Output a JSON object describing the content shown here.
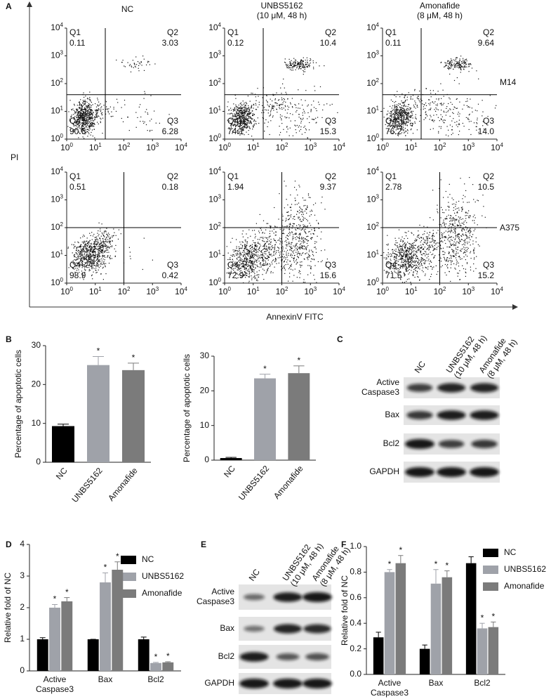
{
  "panel_labels": [
    "A",
    "B",
    "C",
    "D",
    "E",
    "F"
  ],
  "flow": {
    "column_titles": [
      "NC",
      "UNBS5162\n(10 μM, 48 h)",
      "Amonafide\n(8 μM, 48 h)"
    ],
    "row_labels": [
      "M14",
      "A375"
    ],
    "y_label": "PI",
    "x_label": "AnnexinV FITC",
    "axis_ticks": [
      {
        "base": "10",
        "exp": "0"
      },
      {
        "base": "10",
        "exp": "1"
      },
      {
        "base": "10",
        "exp": "2"
      },
      {
        "base": "10",
        "exp": "3"
      },
      {
        "base": "10",
        "exp": "4"
      }
    ],
    "quadrant_names": [
      "Q1",
      "Q2",
      "Q3",
      "Q4"
    ],
    "panels": [
      [
        {
          "Q1": "0.11",
          "Q2": "3.03",
          "Q3": "6.28",
          "Q4": "90.6"
        },
        {
          "Q1": "0.12",
          "Q2": "10.4",
          "Q3": "15.3",
          "Q4": "74.1"
        },
        {
          "Q1": "0.11",
          "Q2": "9.64",
          "Q3": "14.0",
          "Q4": "76.2"
        }
      ],
      [
        {
          "Q1": "0.51",
          "Q2": "0.18",
          "Q3": "0.42",
          "Q4": "98.9"
        },
        {
          "Q1": "1.94",
          "Q2": "9.37",
          "Q3": "15.6",
          "Q4": "72.9"
        },
        {
          "Q1": "2.78",
          "Q2": "10.5",
          "Q3": "15.2",
          "Q4": "71.5"
        }
      ]
    ]
  },
  "chart_data": [
    {
      "type": "bar",
      "y_label": "Percentage of apoptotic cells",
      "categories": [
        "NC",
        "UNBS5162",
        "Amonafide"
      ],
      "values": [
        9.3,
        25,
        23.7
      ],
      "errors": [
        0.5,
        2.2,
        1.8
      ],
      "colors": [
        "#000000",
        "#9fa2a9",
        "#7b7b7b"
      ],
      "significance": [
        null,
        "*",
        "*"
      ],
      "ylim": [
        0,
        30
      ],
      "yticks": [
        0,
        10,
        20,
        30
      ]
    },
    {
      "type": "bar",
      "y_label": "Percentage of apoptotic cells",
      "categories": [
        "NC",
        "UNBS5162",
        "Amonafide"
      ],
      "values": [
        0.6,
        23.6,
        25.1
      ],
      "errors": [
        0.2,
        1.2,
        2.1
      ],
      "colors": [
        "#000000",
        "#9fa2a9",
        "#7b7b7b"
      ],
      "significance": [
        null,
        "*",
        "*"
      ],
      "ylim": [
        0,
        30
      ],
      "yticks": [
        0,
        10,
        20,
        30
      ]
    },
    {
      "type": "bar",
      "y_label": "Relative fold of NC",
      "categories": [
        "Active\nCaspase3",
        "Bax",
        "Bcl2"
      ],
      "series": [
        {
          "name": "NC",
          "color": "#000000",
          "values": [
            1.0,
            1.0,
            1.0
          ],
          "errors": [
            0.05,
            0,
            0.07
          ],
          "significance": [
            null,
            null,
            null
          ]
        },
        {
          "name": "UNBS5162",
          "color": "#9fa2a9",
          "values": [
            2.0,
            2.8,
            0.25
          ],
          "errors": [
            0.1,
            0.3,
            0.02
          ],
          "significance": [
            "*",
            "*",
            "*"
          ]
        },
        {
          "name": "Amonafide",
          "color": "#7b7b7b",
          "values": [
            2.2,
            3.2,
            0.27
          ],
          "errors": [
            0.12,
            0.25,
            0.02
          ],
          "significance": [
            "*",
            "*",
            "*"
          ]
        }
      ],
      "ylim": [
        0,
        4
      ],
      "yticks": [
        0,
        1,
        2,
        3,
        4
      ]
    },
    {
      "type": "bar",
      "y_label": "Relative fold of NC",
      "categories": [
        "Active\nCaspase3",
        "Bax",
        "Bcl2"
      ],
      "series": [
        {
          "name": "NC",
          "color": "#000000",
          "values": [
            0.29,
            0.2,
            0.87
          ],
          "errors": [
            0.04,
            0.03,
            0.05
          ],
          "significance": [
            null,
            null,
            null
          ]
        },
        {
          "name": "UNBS5162",
          "color": "#9fa2a9",
          "values": [
            0.8,
            0.71,
            0.36
          ],
          "errors": [
            0.02,
            0.11,
            0.04
          ],
          "significance": [
            "*",
            "*",
            "*"
          ]
        },
        {
          "name": "Amonafide",
          "color": "#7b7b7b",
          "values": [
            0.87,
            0.76,
            0.37
          ],
          "errors": [
            0.06,
            0.05,
            0.04
          ],
          "significance": [
            "*",
            "*",
            "*"
          ]
        }
      ],
      "ylim": [
        0,
        1
      ],
      "yticks": [
        {
          "value": 0,
          "label": "0.0"
        },
        {
          "value": 0.2,
          "label": "0.2"
        },
        {
          "value": 0.4,
          "label": "0.4"
        },
        {
          "value": 0.6,
          "label": "0.6"
        },
        {
          "value": 0.8,
          "label": "0.8"
        },
        {
          "value": 1,
          "label": "1.0"
        }
      ]
    }
  ],
  "blots": [
    {
      "lanes": [
        "NC",
        "UNBS5162\n(10 μM, 48 h)",
        "Amonafide\n(8 μM, 48 h)"
      ],
      "rows": [
        "Active\nCaspase3",
        "Bax",
        "Bcl2",
        "GAPDH"
      ]
    },
    {
      "lanes": [
        "NC",
        "UNBS5162\n(10 μM, 48 h)",
        "Amonafide\n(8 μM, 48 h)"
      ],
      "rows": [
        "Active\nCaspase3",
        "Bax",
        "Bcl2",
        "GAPDH"
      ]
    }
  ]
}
